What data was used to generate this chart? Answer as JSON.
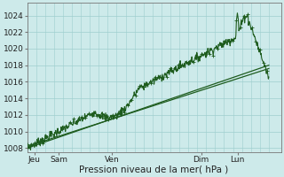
{
  "xlabel": "Pression niveau de la mer( hPa )",
  "ylim": [
    1007.5,
    1025.5
  ],
  "yticks": [
    1008,
    1010,
    1012,
    1014,
    1016,
    1018,
    1020,
    1022,
    1024
  ],
  "xlim": [
    0.0,
    1.05
  ],
  "xtick_positions": [
    0.03,
    0.13,
    0.35,
    0.72,
    0.87
  ],
  "xtick_labels": [
    "Jeu",
    "Sam",
    "Ven",
    "Dim",
    "Lun"
  ],
  "bg_color": "#cdeaea",
  "grid_color": "#9ecece",
  "line_color": "#1e5c1e",
  "figsize": [
    3.2,
    2.0
  ],
  "dpi": 100
}
